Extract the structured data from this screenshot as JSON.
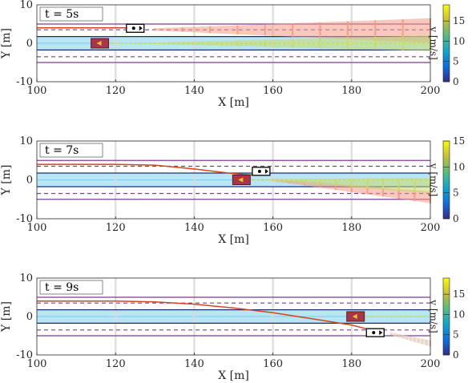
{
  "chart_data": [
    {
      "type": "scatter",
      "title": "t = 5s",
      "xlabel": "X [m]",
      "ylabel": "Y [m]",
      "xlim": [
        100,
        200
      ],
      "ylim": [
        -10,
        10
      ],
      "xticks": [
        "100",
        "120",
        "140",
        "160",
        "180",
        "200"
      ],
      "yticks": [
        "10",
        "0",
        "-10"
      ],
      "colorbar": {
        "label": "v [m/s]",
        "lim": [
          0,
          19
        ],
        "ticks": [
          "0",
          "5",
          "10",
          "15"
        ]
      },
      "grid": "vertical",
      "lane_boundaries": [
        5,
        1.75,
        -1.75,
        -5
      ],
      "lane_centerlines": [
        3.5,
        -3.5
      ],
      "ego": {
        "x": 116,
        "y": 0
      },
      "other_vehicle": {
        "x": 125,
        "y": 3.9
      },
      "trajectory": [
        [
          100,
          4
        ],
        [
          110,
          4
        ],
        [
          120,
          4
        ],
        [
          124,
          4
        ]
      ],
      "predictions": [
        {
          "name": "upper",
          "x": [
            130,
            200
          ],
          "y": [
            3.6,
            3.3
          ],
          "spread": [
            0.3,
            3.2
          ],
          "color": "#f29b86"
        },
        {
          "name": "center",
          "x": [
            130,
            200
          ],
          "y": [
            0,
            0
          ],
          "spread": [
            0.2,
            2.0
          ],
          "color": "#c7d96b"
        }
      ]
    },
    {
      "type": "scatter",
      "title": "t = 7s",
      "xlabel": "X [m]",
      "ylabel": "Y [m]",
      "xlim": [
        100,
        200
      ],
      "ylim": [
        -10,
        10
      ],
      "xticks": [
        "100",
        "120",
        "140",
        "160",
        "180",
        "200"
      ],
      "yticks": [
        "10",
        "0",
        "-10"
      ],
      "colorbar": {
        "label": "v [m/s]",
        "lim": [
          0,
          15
        ],
        "ticks": [
          "0",
          "5",
          "10",
          "15"
        ]
      },
      "grid": "vertical",
      "lane_boundaries": [
        5,
        1.75,
        -1.75,
        -5
      ],
      "lane_centerlines": [
        3.5,
        -3.5
      ],
      "ego": {
        "x": 152,
        "y": 0
      },
      "other_vehicle": {
        "x": 157,
        "y": 2.2
      },
      "trajectory": [
        [
          100,
          4
        ],
        [
          110,
          4
        ],
        [
          120,
          4
        ],
        [
          130,
          3.8
        ],
        [
          140,
          2.8
        ],
        [
          150,
          1.6
        ],
        [
          156,
          1.2
        ]
      ],
      "predictions": [
        {
          "name": "lower",
          "x": [
            160,
            200
          ],
          "y": [
            0,
            -4.5
          ],
          "spread": [
            0.3,
            1.5
          ],
          "color": "#f29b86"
        },
        {
          "name": "center",
          "x": [
            160,
            200
          ],
          "y": [
            0,
            -1.5
          ],
          "spread": [
            0.2,
            2.0
          ],
          "color": "#c7d96b"
        }
      ]
    },
    {
      "type": "scatter",
      "title": "t = 9s",
      "xlabel": "X [m]",
      "ylabel": "Y [m]",
      "xlim": [
        100,
        200
      ],
      "ylim": [
        -10,
        10
      ],
      "xticks": [
        "100",
        "120",
        "140",
        "160",
        "180",
        "200"
      ],
      "yticks": [
        "10",
        "0",
        "-10"
      ],
      "colorbar": {
        "label": "v [m/s]",
        "lim": [
          0,
          19
        ],
        "ticks": [
          "0",
          "5",
          "10",
          "15"
        ]
      },
      "grid": "vertical",
      "lane_boundaries": [
        5,
        1.75,
        -1.75,
        -5
      ],
      "lane_centerlines": [
        3.5,
        -3.5
      ],
      "ego": {
        "x": 181,
        "y": 0
      },
      "other_vehicle": {
        "x": 186,
        "y": -4.2
      },
      "trajectory": [
        [
          100,
          4
        ],
        [
          110,
          4
        ],
        [
          120,
          4
        ],
        [
          130,
          3.8
        ],
        [
          140,
          3.2
        ],
        [
          150,
          2.2
        ],
        [
          160,
          1
        ],
        [
          170,
          -0.6
        ],
        [
          180,
          -2.2
        ],
        [
          186,
          -3.8
        ]
      ],
      "predictions": [
        {
          "name": "lower",
          "x": [
            190,
            200
          ],
          "y": [
            -4.5,
            -7
          ],
          "spread": [
            0.3,
            0.8
          ],
          "color": "#e8cfc0"
        }
      ]
    }
  ]
}
